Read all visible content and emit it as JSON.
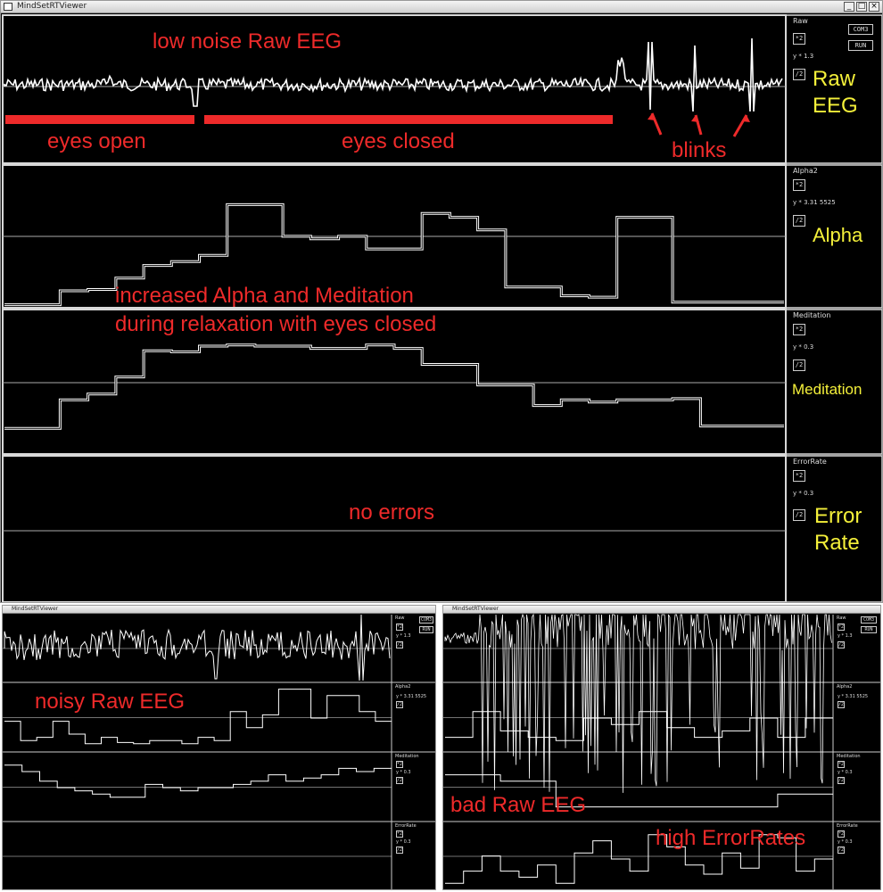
{
  "main_window": {
    "title": "MindSetRTViewer",
    "panels": [
      {
        "channel": "Raw",
        "y_label": "y * 1.3",
        "button": "*2",
        "button2": "/2"
      },
      {
        "channel": "Alpha2",
        "y_label": "y * 3.31 5525",
        "button": "*2",
        "button2": "/2"
      },
      {
        "channel": "Meditation",
        "y_label": "y * 0.3",
        "button": "*2",
        "button2": "/2"
      },
      {
        "channel": "ErrorRate",
        "y_label": "y * 0.3",
        "button": "*2",
        "button2": "/2"
      }
    ],
    "top_buttons": [
      "COM3",
      "RUN"
    ]
  },
  "small_window_left": {
    "panels": [
      {
        "channel": "Raw",
        "y_label": "y * 1.3",
        "button": "*2",
        "button2": "/2"
      },
      {
        "channel": "Alpha2",
        "y_label": "y * 3.31 5525",
        "button": "*2",
        "button2": "/2"
      },
      {
        "channel": "Meditation",
        "y_label": "y * 0.3",
        "button": "*2",
        "button2": "/2"
      },
      {
        "channel": "ErrorRate",
        "y_label": "y * 0.3",
        "button": "*2",
        "button2": "/2"
      }
    ],
    "top_buttons": [
      "COM3",
      "RUN"
    ]
  },
  "small_window_right": {
    "panels": [
      {
        "channel": "Raw",
        "y_label": "y * 1.3",
        "button": "*2",
        "button2": "/2"
      },
      {
        "channel": "Alpha2",
        "y_label": "y * 3.31 5525",
        "button": "*2",
        "button2": "/2"
      },
      {
        "channel": "Meditation",
        "y_label": "y * 0.3",
        "button": "*2",
        "button2": "/2"
      },
      {
        "channel": "ErrorRate",
        "y_label": "y * 0.3",
        "button": "*2",
        "button2": "/2"
      }
    ],
    "top_buttons": [
      "COM3",
      "RUN"
    ]
  },
  "annotations": {
    "low_noise": "low noise Raw EEG",
    "eyes_open": "eyes open",
    "eyes_closed": "eyes closed",
    "blinks": "blinks",
    "increased_line1": "increased Alpha and Meditation",
    "increased_line2": "during relaxation with eyes closed",
    "no_errors": "no errors",
    "noisy": "noisy Raw EEG",
    "bad": "bad Raw EEG",
    "high_error": "high ErrorRates"
  },
  "side_labels": {
    "raw_line1": "Raw",
    "raw_line2": "EEG",
    "alpha": "Alpha",
    "meditation": "Meditation",
    "error_line1": "Error",
    "error_line2": "Rate"
  },
  "series": {
    "alpha_steps": [
      0.01,
      0.01,
      0.12,
      0.13,
      0.22,
      0.32,
      0.35,
      0.4,
      0.8,
      0.8,
      0.55,
      0.53,
      0.55,
      0.45,
      0.45,
      0.73,
      0.7,
      0.6,
      0.15,
      0.15,
      0.08,
      0.07,
      0.7,
      0.7,
      0.03,
      0.03,
      0.03,
      0.03
    ],
    "meditation_steps": [
      0.1,
      0.1,
      0.35,
      0.4,
      0.55,
      0.78,
      0.77,
      0.82,
      0.83,
      0.82,
      0.82,
      0.8,
      0.8,
      0.83,
      0.8,
      0.66,
      0.66,
      0.48,
      0.48,
      0.3,
      0.35,
      0.33,
      0.35,
      0.35,
      0.36,
      0.12,
      0.12,
      0.12
    ],
    "error_steps": [
      0,
      0,
      0,
      0,
      0,
      0,
      0,
      0
    ]
  },
  "colors": {
    "annotation": "#ee2a2a",
    "side_label": "#f4f03a",
    "trace": "#ffffff",
    "background": "#000000"
  }
}
